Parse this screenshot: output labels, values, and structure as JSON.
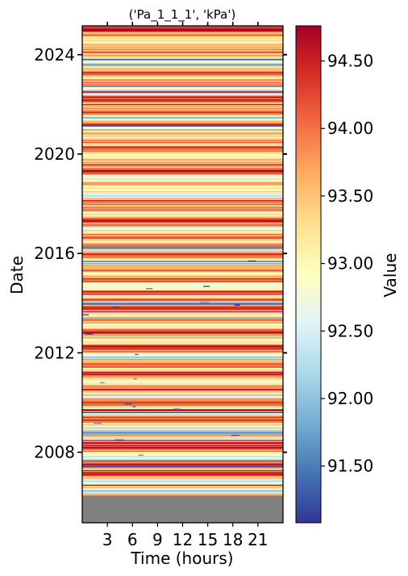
{
  "chart_data": {
    "type": "heatmap",
    "title": "('Pa_1_1_1', 'kPa')",
    "xlabel": "Time (hours)",
    "ylabel": "Date",
    "xlim": [
      0,
      24
    ],
    "x_ticks": [
      3,
      6,
      9,
      12,
      15,
      18,
      21
    ],
    "x_tick_labels": [
      "3",
      "6",
      "9",
      "12",
      "15",
      "18",
      "21"
    ],
    "y_ticks": [
      "2008",
      "2012",
      "2016",
      "2020",
      "2024"
    ],
    "ylim": [
      "2005-03-01",
      "2025-03-01"
    ],
    "missing_data_range": [
      "2005-03-01",
      "2006-04-01"
    ],
    "colorbar": {
      "label": "Value",
      "colormap": "RdYlBu_r",
      "range": [
        91.08,
        94.76
      ],
      "ticks": [
        91.5,
        92.0,
        92.5,
        93.0,
        93.5,
        94.0,
        94.5
      ],
      "tick_labels": [
        "91.50",
        "92.00",
        "92.50",
        "93.00",
        "93.50",
        "94.00",
        "94.50"
      ]
    },
    "colors": {
      "missing": "#808080",
      "low": "#313695",
      "mid": "#ffffbf",
      "high": "#a50026"
    },
    "series": [
      {
        "values": [
          [
            "2024-12-20",
            94.62
          ],
          [
            "2024-12-01",
            93.2
          ],
          [
            "2024-11-10",
            93.05
          ],
          [
            "2024-10-20",
            94.3
          ],
          [
            "2024-09-15",
            93.1
          ],
          [
            "2024-08-01",
            93.55
          ],
          [
            "2024-07-20",
            92.4
          ],
          [
            "2024-06-01",
            93.9
          ],
          [
            "2024-04-10",
            93.3
          ],
          [
            "2024-02-15",
            94.1
          ],
          [
            "2023-12-20",
            93.6
          ],
          [
            "2023-11-05",
            91.9
          ],
          [
            "2023-09-01",
            93.4
          ],
          [
            "2023-07-10",
            93.0
          ],
          [
            "2023-05-01",
            94.4
          ],
          [
            "2023-03-15",
            93.7
          ],
          [
            "2023-01-10",
            93.2
          ],
          [
            "2022-11-20",
            94.0
          ],
          [
            "2022-09-10",
            93.35
          ],
          [
            "2022-07-01",
            92.3
          ],
          [
            "2022-05-15",
            93.8
          ],
          [
            "2022-03-10",
            94.5
          ],
          [
            "2022-01-01",
            93.1
          ],
          [
            "2021-11-01",
            93.6
          ],
          [
            "2021-09-01",
            94.1
          ],
          [
            "2021-07-01",
            92.2
          ],
          [
            "2021-05-01",
            93.4
          ],
          [
            "2021-03-01",
            94.3
          ],
          [
            "2021-01-01",
            92.5
          ],
          [
            "2020-11-01",
            93.7
          ],
          [
            "2020-09-01",
            93.0
          ],
          [
            "2020-07-01",
            93.9
          ],
          [
            "2020-05-01",
            93.5
          ],
          [
            "2020-03-01",
            94.4
          ],
          [
            "2020-01-01",
            92.4
          ],
          [
            "2019-11-01",
            93.55
          ],
          [
            "2019-09-01",
            94.0
          ],
          [
            "2019-07-01",
            93.2
          ],
          [
            "2019-05-01",
            94.6
          ],
          [
            "2019-03-01",
            93.45
          ],
          [
            "2019-01-01",
            92.3
          ],
          [
            "2018-11-01",
            93.8
          ],
          [
            "2018-09-01",
            93.1
          ],
          [
            "2018-07-01",
            93.6
          ],
          [
            "2018-05-01",
            91.8
          ],
          [
            "2018-03-01",
            94.2
          ],
          [
            "2018-01-01",
            93.3
          ],
          [
            "2017-11-01",
            94.0
          ],
          [
            "2017-09-01",
            92.9
          ],
          [
            "2017-07-01",
            93.5
          ],
          [
            "2017-05-01",
            94.7
          ],
          [
            "2017-03-01",
            93.7
          ],
          [
            "2017-01-01",
            92.6
          ],
          [
            "2016-11-01",
            93.2
          ],
          [
            "2016-09-01",
            94.3
          ],
          [
            "2016-07-01",
            93.4
          ],
          [
            "2016-05-01",
            93.9
          ],
          [
            "2016-03-01",
            92.4
          ],
          [
            "2016-01-01",
            94.6
          ],
          [
            "2015-11-01",
            93.3
          ],
          [
            "2015-09-01",
            92.8
          ],
          [
            "2015-07-01",
            93.6
          ],
          [
            "2015-05-01",
            94.1
          ],
          [
            "2015-03-01",
            93.0
          ],
          [
            "2015-01-01",
            94.5
          ],
          [
            "2014-11-01",
            93.45
          ],
          [
            "2014-09-01",
            92.3
          ],
          [
            "2014-07-01",
            93.9
          ],
          [
            "2014-05-01",
            93.2
          ],
          [
            "2014-03-01",
            94.2
          ],
          [
            "2014-01-01",
            92.0
          ],
          [
            "2013-11-01",
            94.6
          ],
          [
            "2013-09-01",
            93.5
          ],
          [
            "2013-07-01",
            93.1
          ],
          [
            "2013-05-01",
            94.0
          ],
          [
            "2013-03-01",
            92.6
          ],
          [
            "2013-01-01",
            93.7
          ],
          [
            "2012-11-01",
            94.4
          ],
          [
            "2012-09-01",
            93.3
          ],
          [
            "2012-07-01",
            92.7
          ],
          [
            "2012-05-01",
            93.8
          ],
          [
            "2012-03-01",
            94.5
          ],
          [
            "2012-01-01",
            93.0
          ],
          [
            "2011-11-01",
            92.4
          ],
          [
            "2011-09-01",
            93.6
          ],
          [
            "2011-07-01",
            94.1
          ],
          [
            "2011-05-01",
            93.2
          ],
          [
            "2011-03-01",
            94.6
          ],
          [
            "2011-01-01",
            93.4
          ],
          [
            "2010-11-01",
            92.9
          ],
          [
            "2010-09-01",
            93.9
          ],
          [
            "2010-07-01",
            94.3
          ],
          [
            "2010-05-01",
            92.1
          ],
          [
            "2010-03-01",
            93.5
          ],
          [
            "2010-01-01",
            94.2
          ],
          [
            "2009-11-01",
            93.1
          ],
          [
            "2009-09-01",
            91.7
          ],
          [
            "2009-07-01",
            93.7
          ],
          [
            "2009-05-01",
            94.5
          ],
          [
            "2009-03-01",
            93.3
          ],
          [
            "2009-01-01",
            92.5
          ],
          [
            "2008-11-01",
            94.0
          ],
          [
            "2008-09-01",
            93.6
          ],
          [
            "2008-07-01",
            92.2
          ],
          [
            "2008-05-01",
            93.4
          ],
          [
            "2008-03-01",
            94.6
          ],
          [
            "2008-01-01",
            93.0
          ],
          [
            "2007-11-01",
            91.9
          ],
          [
            "2007-09-01",
            93.8
          ],
          [
            "2007-07-01",
            94.2
          ],
          [
            "2007-05-01",
            93.2
          ],
          [
            "2007-03-01",
            94.7
          ],
          [
            "2007-01-01",
            93.5
          ],
          [
            "2006-11-01",
            92.4
          ],
          [
            "2006-09-01",
            93.9
          ],
          [
            "2006-07-01",
            92.0
          ],
          [
            "2006-05-01",
            93.3
          ]
        ]
      }
    ]
  }
}
